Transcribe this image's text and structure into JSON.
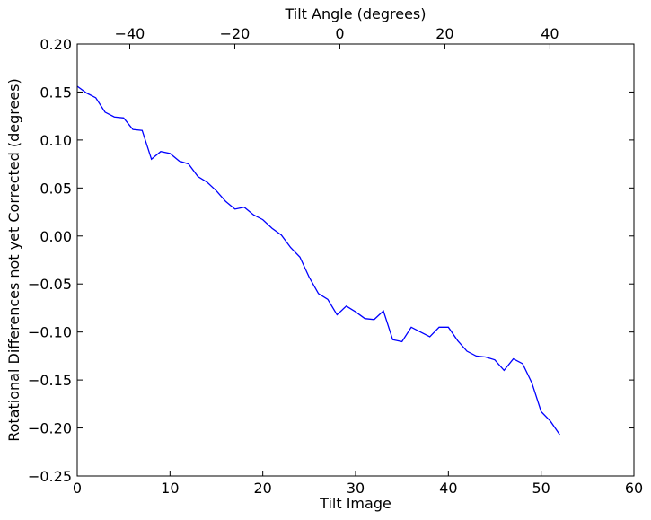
{
  "chart_data": {
    "type": "line",
    "title": "",
    "xlabel": "Tilt Image",
    "ylabel": "Rotational Differences not yet Corrected (degrees)",
    "top_xlabel": "Tilt Angle (degrees)",
    "xlim": [
      0,
      60
    ],
    "ylim": [
      -0.25,
      0.2
    ],
    "top_xlim": [
      -50,
      56
    ],
    "grid": false,
    "x_ticks": [
      0,
      10,
      20,
      30,
      40,
      50,
      60
    ],
    "y_ticks": [
      0.2,
      0.15,
      0.1,
      0.05,
      0.0,
      -0.05,
      -0.1,
      -0.15,
      -0.2,
      -0.25
    ],
    "top_x_ticks": [
      -40,
      -20,
      0,
      20,
      40
    ],
    "x_tick_labels": [
      "0",
      "10",
      "20",
      "30",
      "40",
      "50",
      "60"
    ],
    "y_tick_labels": [
      "0.20",
      "0.15",
      "0.10",
      "0.05",
      "0.00",
      "−0.05",
      "−0.10",
      "−0.15",
      "−0.20",
      "−0.25"
    ],
    "top_x_tick_labels": [
      "−40",
      "−20",
      "0",
      "20",
      "40"
    ],
    "series": [
      {
        "color": "#0000ff",
        "x": [
          0,
          1,
          2,
          3,
          4,
          5,
          6,
          7,
          8,
          9,
          10,
          11,
          12,
          13,
          14,
          15,
          16,
          17,
          18,
          19,
          20,
          21,
          22,
          23,
          24,
          25,
          26,
          27,
          28,
          29,
          30,
          31,
          32,
          33,
          34,
          35,
          36,
          37,
          38,
          39,
          40,
          41,
          42,
          43,
          44,
          45,
          46,
          47,
          48,
          49,
          50,
          51,
          52
        ],
        "y": [
          0.156,
          0.149,
          0.144,
          0.129,
          0.124,
          0.123,
          0.111,
          0.11,
          0.08,
          0.088,
          0.086,
          0.078,
          0.075,
          0.062,
          0.056,
          0.047,
          0.036,
          0.028,
          0.03,
          0.022,
          0.017,
          0.008,
          0.001,
          -0.012,
          -0.022,
          -0.043,
          -0.06,
          -0.066,
          -0.082,
          -0.073,
          -0.079,
          -0.086,
          -0.087,
          -0.078,
          -0.108,
          -0.11,
          -0.095,
          -0.1,
          -0.105,
          -0.095,
          -0.095,
          -0.109,
          -0.12,
          -0.125,
          -0.126,
          -0.129,
          -0.14,
          -0.128,
          -0.133,
          -0.153,
          -0.183,
          -0.193,
          -0.207
        ]
      }
    ]
  }
}
